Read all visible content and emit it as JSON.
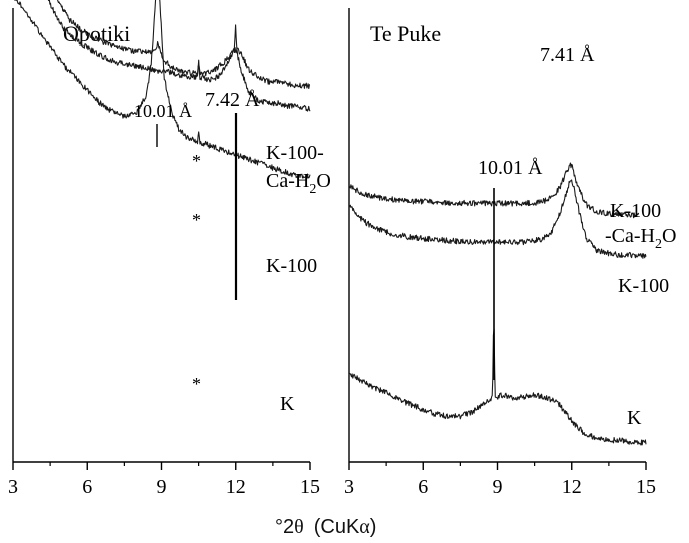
{
  "chart_data": [
    {
      "type": "line",
      "panel_label": "Opotiki",
      "x_ticks": [
        "3",
        "6",
        "9",
        "12",
        "15"
      ],
      "xlim": [
        3,
        15
      ],
      "y_axis_ticks": false,
      "grid": false,
      "legend": "none (curve labels at right end of traces)",
      "series": [
        {
          "name": "K-100-Ca-H2O",
          "label_lines": [
            "K-100-",
            "Ca-H",
            "2",
            "O"
          ],
          "x": [
            4.0,
            4.2,
            4.5,
            4.9,
            5.3,
            5.8,
            6.4,
            7.0,
            7.6,
            8.2,
            8.55,
            8.75,
            8.85,
            8.95,
            9.1,
            9.4,
            9.8,
            10.2,
            10.45,
            10.5,
            10.55,
            10.8,
            11.2,
            11.6,
            11.8,
            12.0,
            12.2,
            12.5,
            12.9,
            13.3,
            13.7,
            14.1,
            14.5,
            15.0
          ],
          "y": [
            0.98,
            0.82,
            0.68,
            0.56,
            0.49,
            0.44,
            0.4,
            0.37,
            0.35,
            0.34,
            0.34,
            0.36,
            0.38,
            0.35,
            0.3,
            0.27,
            0.25,
            0.24,
            0.24,
            0.28,
            0.24,
            0.24,
            0.26,
            0.3,
            0.33,
            0.35,
            0.34,
            0.26,
            0.22,
            0.2,
            0.2,
            0.19,
            0.18,
            0.18
          ]
        },
        {
          "name": "K-100",
          "label_lines": [
            "K-100"
          ],
          "x": [
            3.0,
            3.5,
            4.0,
            4.5,
            5.0,
            5.5,
            6.0,
            6.6,
            7.2,
            7.8,
            8.4,
            8.8,
            9.2,
            9.6,
            10.0,
            10.45,
            10.5,
            10.55,
            10.9,
            11.3,
            11.6,
            11.8,
            11.95,
            12.0,
            12.05,
            12.2,
            12.5,
            12.9,
            13.3,
            13.7,
            14.1,
            14.5,
            15.0
          ],
          "y": [
            0.98,
            0.86,
            0.72,
            0.62,
            0.54,
            0.5,
            0.47,
            0.44,
            0.42,
            0.41,
            0.4,
            0.39,
            0.39,
            0.38,
            0.37,
            0.37,
            0.43,
            0.37,
            0.36,
            0.37,
            0.41,
            0.44,
            0.47,
            0.55,
            0.45,
            0.4,
            0.32,
            0.29,
            0.28,
            0.28,
            0.27,
            0.27,
            0.26
          ]
        },
        {
          "name": "K",
          "label_lines": [
            "K"
          ],
          "x": [
            3.0,
            3.5,
            4.0,
            4.5,
            5.0,
            5.5,
            6.0,
            6.5,
            7.0,
            7.5,
            8.0,
            8.4,
            8.6,
            8.75,
            8.85,
            8.95,
            9.1,
            9.4,
            9.7,
            10.0,
            10.45,
            10.5,
            10.55,
            11.0,
            11.5,
            12.0,
            12.5,
            13.0,
            13.5,
            14.0,
            14.5,
            15.0
          ],
          "y": [
            0.47,
            0.43,
            0.39,
            0.35,
            0.31,
            0.28,
            0.25,
            0.22,
            0.2,
            0.19,
            0.2,
            0.24,
            0.32,
            0.45,
            0.52,
            0.44,
            0.28,
            0.2,
            0.16,
            0.14,
            0.13,
            0.16,
            0.13,
            0.12,
            0.11,
            0.1,
            0.09,
            0.08,
            0.07,
            0.06,
            0.05,
            0.05
          ]
        }
      ],
      "annotations": [
        {
          "text": "10.01 Å",
          "x": 8.85
        },
        {
          "text": "7.42 Å",
          "x": 12.0
        },
        {
          "text": "*",
          "x": 10.5
        },
        {
          "text": "*",
          "x": 10.5
        },
        {
          "text": "*",
          "x": 10.5
        }
      ]
    },
    {
      "type": "line",
      "panel_label": "Te Puke",
      "x_ticks": [
        "3",
        "6",
        "9",
        "12",
        "15"
      ],
      "xlim": [
        3,
        15
      ],
      "y_axis_ticks": false,
      "grid": false,
      "legend": "none (curve labels at right end of traces)",
      "series": [
        {
          "name": "K-100-Ca-H2O",
          "label_lines": [
            "K-100",
            "-Ca-H",
            "2",
            "O"
          ],
          "x": [
            3.0,
            3.3,
            3.7,
            4.2,
            4.8,
            5.5,
            6.2,
            7.0,
            8.0,
            9.0,
            10.0,
            10.6,
            11.0,
            11.3,
            11.55,
            11.75,
            11.9,
            11.95,
            12.0,
            12.1,
            12.3,
            12.6,
            13.0,
            13.4,
            13.8,
            14.2,
            14.7
          ],
          "y": [
            0.7,
            0.62,
            0.56,
            0.52,
            0.49,
            0.47,
            0.46,
            0.45,
            0.44,
            0.44,
            0.44,
            0.45,
            0.48,
            0.55,
            0.68,
            0.85,
            0.96,
            0.98,
            0.96,
            0.84,
            0.62,
            0.42,
            0.33,
            0.3,
            0.29,
            0.28,
            0.27
          ]
        },
        {
          "name": "K-100",
          "label_lines": [
            "K-100"
          ],
          "x": [
            3.0,
            3.3,
            3.7,
            4.2,
            4.8,
            5.5,
            6.2,
            7.0,
            8.0,
            9.0,
            10.0,
            10.8,
            11.2,
            11.5,
            11.75,
            11.9,
            12.0,
            12.1,
            12.3,
            12.6,
            13.0,
            13.5,
            14.0,
            14.5,
            15.0
          ],
          "y": [
            0.56,
            0.5,
            0.45,
            0.41,
            0.38,
            0.36,
            0.35,
            0.34,
            0.33,
            0.33,
            0.33,
            0.35,
            0.4,
            0.5,
            0.62,
            0.7,
            0.72,
            0.66,
            0.52,
            0.35,
            0.28,
            0.26,
            0.25,
            0.25,
            0.24
          ]
        },
        {
          "name": "K",
          "label_lines": [
            "K"
          ],
          "x": [
            3.0,
            3.5,
            4.0,
            4.5,
            5.0,
            5.5,
            6.0,
            6.5,
            7.0,
            7.5,
            8.0,
            8.5,
            8.8,
            8.85,
            8.9,
            9.2,
            9.6,
            10.0,
            10.5,
            11.0,
            11.5,
            12.0,
            12.5,
            13.0,
            13.5,
            14.0,
            14.5,
            15.0
          ],
          "y": [
            0.3,
            0.27,
            0.24,
            0.22,
            0.19,
            0.17,
            0.15,
            0.13,
            0.12,
            0.12,
            0.14,
            0.18,
            0.2,
            0.57,
            0.2,
            0.21,
            0.2,
            0.2,
            0.21,
            0.2,
            0.17,
            0.1,
            0.05,
            0.03,
            0.02,
            0.02,
            0.01,
            0.01
          ]
        }
      ],
      "annotations": [
        {
          "text": "10.01 Å",
          "x": 8.85
        },
        {
          "text": "7.41 Å",
          "x": 12.0
        }
      ]
    }
  ],
  "x_axis_title": {
    "degree": "°2",
    "theta": "θ",
    "paren": "(CuK",
    "alpha": "α",
    "close": ")"
  }
}
